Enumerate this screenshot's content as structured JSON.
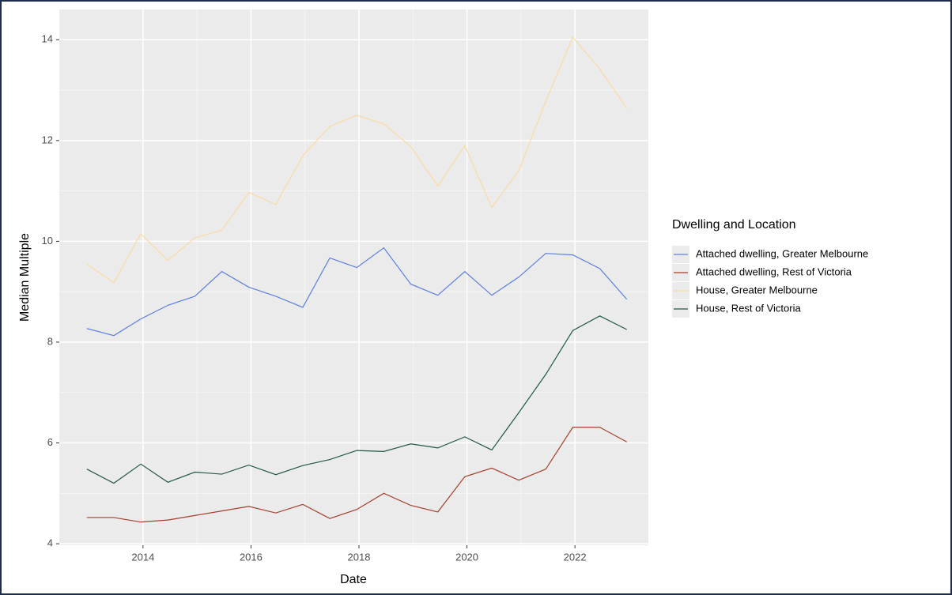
{
  "chart_data": {
    "type": "line",
    "x_label": "Date",
    "y_label": "Median Multiple",
    "legend_title": "Dwelling and Location",
    "x": [
      2012.96,
      2013.46,
      2013.96,
      2014.46,
      2014.96,
      2015.46,
      2015.96,
      2016.46,
      2016.96,
      2017.46,
      2017.96,
      2018.46,
      2018.96,
      2019.46,
      2019.96,
      2020.46,
      2020.96,
      2021.46,
      2021.96,
      2022.46,
      2022.96
    ],
    "series": [
      {
        "name": "Attached dwelling, Greater Melbourne",
        "color": "#5b7fe0",
        "values": [
          8.27,
          8.13,
          8.46,
          8.73,
          8.91,
          9.4,
          9.09,
          8.91,
          8.69,
          9.67,
          9.48,
          9.87,
          9.15,
          8.93,
          9.4,
          8.93,
          9.29,
          9.76,
          9.73,
          9.46,
          8.85
        ]
      },
      {
        "name": "Attached dwelling, Rest of Victoria",
        "color": "#a3402b",
        "values": [
          4.52,
          4.52,
          4.43,
          4.47,
          4.56,
          4.65,
          4.74,
          4.61,
          4.78,
          4.5,
          4.68,
          5.0,
          4.76,
          4.63,
          5.33,
          5.5,
          5.26,
          5.48,
          6.31,
          6.31,
          6.02
        ]
      },
      {
        "name": "House, Greater Melbourne",
        "color": "#fadba2",
        "values": [
          9.55,
          9.18,
          10.15,
          9.62,
          10.07,
          10.22,
          10.97,
          10.73,
          11.7,
          12.28,
          12.5,
          12.33,
          11.88,
          11.1,
          11.9,
          10.67,
          11.4,
          12.78,
          14.05,
          13.42,
          12.64
        ]
      },
      {
        "name": "House, Rest of Victoria",
        "color": "#1f5a3f",
        "values": [
          5.48,
          5.2,
          5.58,
          5.22,
          5.42,
          5.38,
          5.56,
          5.37,
          5.55,
          5.67,
          5.85,
          5.83,
          5.98,
          5.9,
          6.12,
          5.86,
          6.6,
          7.36,
          8.23,
          8.52,
          8.25
        ]
      }
    ],
    "xlim": [
      2012.45,
      2023.36
    ],
    "xticks": [
      2014,
      2016,
      2018,
      2020,
      2022
    ],
    "ylim": [
      3.97,
      14.6
    ],
    "yticks": [
      4,
      6,
      8,
      10,
      12,
      14
    ],
    "grid": true,
    "legend": "right"
  }
}
